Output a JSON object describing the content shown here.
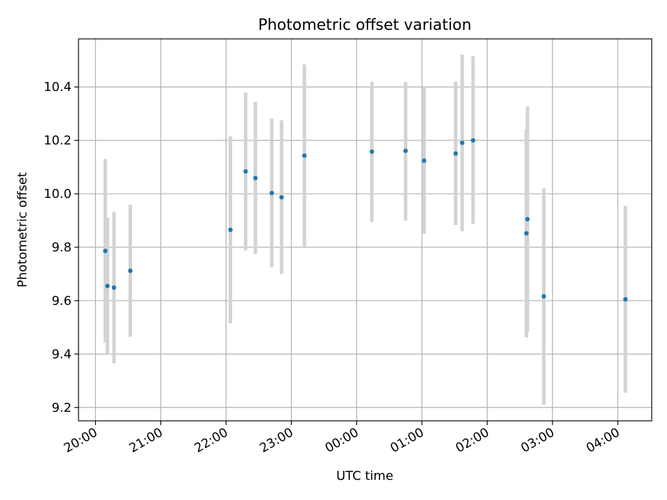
{
  "chart_data": {
    "type": "scatter",
    "title": "Photometric offset variation",
    "xlabel": "UTC time",
    "ylabel": "Photometric offset",
    "grid": true,
    "x_tick_labels": [
      "20:00",
      "21:00",
      "22:00",
      "23:00",
      "00:00",
      "01:00",
      "02:00",
      "03:00",
      "04:00"
    ],
    "x_tick_hours": [
      0,
      1,
      2,
      3,
      4,
      5,
      6,
      7,
      8
    ],
    "x_axis_start": "20:00",
    "xlim_hours": [
      -0.26,
      8.52
    ],
    "ylim": [
      9.15,
      10.58
    ],
    "y_ticks": [
      9.2,
      9.4,
      9.6,
      9.8,
      10.0,
      10.2,
      10.4
    ],
    "y_tick_labels": [
      "9.2",
      "9.4",
      "9.6",
      "9.8",
      "10.0",
      "10.2",
      "10.4"
    ],
    "point_color": "#1f77b4",
    "errorbar_color": "#d3d3d3",
    "points": [
      {
        "time": "20:09",
        "y": 9.786,
        "ymin": 9.443,
        "ymax": 10.13
      },
      {
        "time": "20:11",
        "y": 9.655,
        "ymin": 9.402,
        "ymax": 9.91
      },
      {
        "time": "20:17",
        "y": 9.649,
        "ymin": 9.365,
        "ymax": 9.932
      },
      {
        "time": "20:32",
        "y": 9.712,
        "ymin": 9.465,
        "ymax": 9.959
      },
      {
        "time": "22:04",
        "y": 9.865,
        "ymin": 9.515,
        "ymax": 10.215
      },
      {
        "time": "22:18",
        "y": 10.084,
        "ymin": 9.788,
        "ymax": 10.379
      },
      {
        "time": "22:27",
        "y": 10.059,
        "ymin": 9.775,
        "ymax": 10.344
      },
      {
        "time": "22:42",
        "y": 10.003,
        "ymin": 9.725,
        "ymax": 10.282
      },
      {
        "time": "22:51",
        "y": 9.987,
        "ymin": 9.7,
        "ymax": 10.275
      },
      {
        "time": "23:12",
        "y": 10.143,
        "ymin": 9.803,
        "ymax": 10.484
      },
      {
        "time": "00:14",
        "y": 10.158,
        "ymin": 9.895,
        "ymax": 10.42
      },
      {
        "time": "00:45",
        "y": 10.161,
        "ymin": 9.9,
        "ymax": 10.418
      },
      {
        "time": "01:02",
        "y": 10.124,
        "ymin": 9.85,
        "ymax": 10.4
      },
      {
        "time": "01:31",
        "y": 10.151,
        "ymin": 9.883,
        "ymax": 10.42
      },
      {
        "time": "01:37",
        "y": 10.191,
        "ymin": 9.86,
        "ymax": 10.521
      },
      {
        "time": "01:47",
        "y": 10.2,
        "ymin": 9.887,
        "ymax": 10.515
      },
      {
        "time": "02:36",
        "y": 9.852,
        "ymin": 9.462,
        "ymax": 10.242
      },
      {
        "time": "02:37",
        "y": 9.905,
        "ymin": 9.483,
        "ymax": 10.327
      },
      {
        "time": "02:52",
        "y": 9.616,
        "ymin": 9.21,
        "ymax": 10.02
      },
      {
        "time": "04:07",
        "y": 9.605,
        "ymin": 9.255,
        "ymax": 9.955
      }
    ]
  }
}
